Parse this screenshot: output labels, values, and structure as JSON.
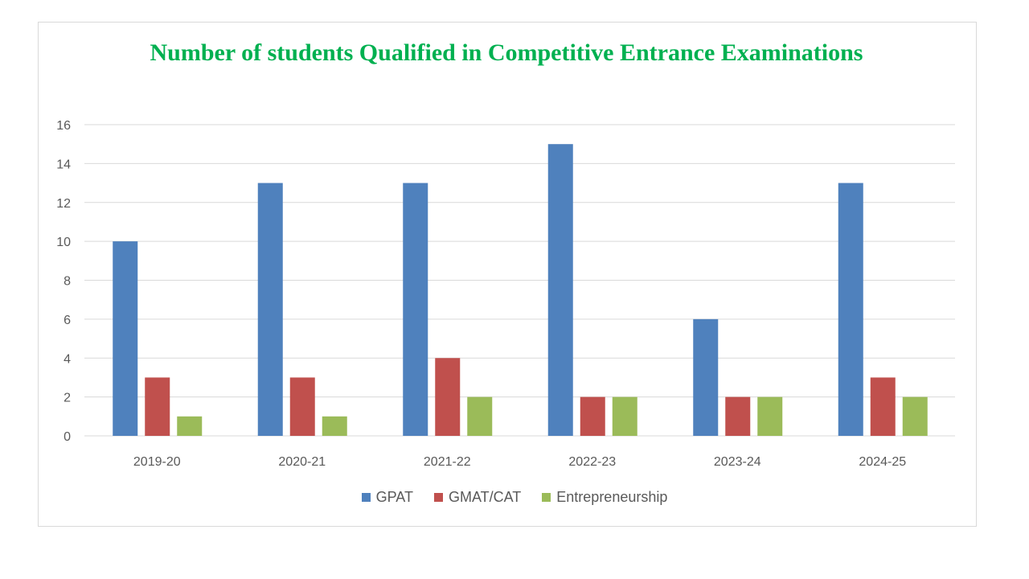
{
  "chart_data": {
    "type": "bar",
    "title": "Number of students Qualified in Competitive  Entrance Examinations",
    "categories": [
      "2019-20",
      "2020-21",
      "2021-22",
      "2022-23",
      "2023-24",
      "2024-25"
    ],
    "series": [
      {
        "name": "GPAT",
        "values": [
          10,
          13,
          13,
          15,
          6,
          13
        ],
        "color": "#4f81bd"
      },
      {
        "name": "GMAT/CAT",
        "values": [
          3,
          3,
          4,
          2,
          2,
          3
        ],
        "color": "#c0504d"
      },
      {
        "name": "Entrepreneurship",
        "values": [
          1,
          1,
          2,
          2,
          2,
          2
        ],
        "color": "#9bbb59"
      }
    ],
    "ylim": [
      0,
      16
    ],
    "yticks": [
      0,
      2,
      4,
      6,
      8,
      10,
      12,
      14,
      16
    ],
    "grid": true,
    "legend": "bottom",
    "title_color": "#00b050"
  }
}
